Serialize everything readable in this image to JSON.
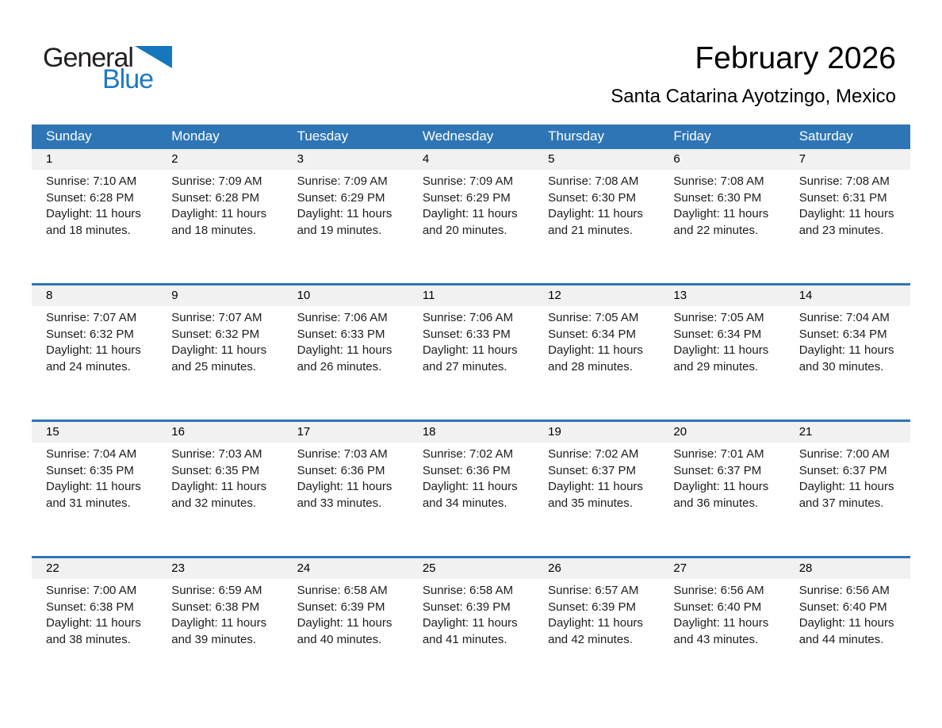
{
  "logo": {
    "part1": "General",
    "part2": "Blue"
  },
  "header": {
    "month_title": "February 2026",
    "location_subtitle": "Santa Catarina Ayotzingo, Mexico"
  },
  "colors": {
    "header_blue": "#2e75b6",
    "week_border_blue": "#2e75b6",
    "day_strip_gray": "#f1f1f1",
    "logo_black": "#231f20",
    "logo_blue": "#1b7ac4"
  },
  "calendar": {
    "weekdays": [
      "Sunday",
      "Monday",
      "Tuesday",
      "Wednesday",
      "Thursday",
      "Friday",
      "Saturday"
    ],
    "weeks": [
      {
        "days": [
          {
            "day": "1",
            "sunrise": "Sunrise: 7:10 AM",
            "sunset": "Sunset: 6:28 PM",
            "daylight_line1": "Daylight: 11 hours",
            "daylight_line2": "and 18 minutes."
          },
          {
            "day": "2",
            "sunrise": "Sunrise: 7:09 AM",
            "sunset": "Sunset: 6:28 PM",
            "daylight_line1": "Daylight: 11 hours",
            "daylight_line2": "and 18 minutes."
          },
          {
            "day": "3",
            "sunrise": "Sunrise: 7:09 AM",
            "sunset": "Sunset: 6:29 PM",
            "daylight_line1": "Daylight: 11 hours",
            "daylight_line2": "and 19 minutes."
          },
          {
            "day": "4",
            "sunrise": "Sunrise: 7:09 AM",
            "sunset": "Sunset: 6:29 PM",
            "daylight_line1": "Daylight: 11 hours",
            "daylight_line2": "and 20 minutes."
          },
          {
            "day": "5",
            "sunrise": "Sunrise: 7:08 AM",
            "sunset": "Sunset: 6:30 PM",
            "daylight_line1": "Daylight: 11 hours",
            "daylight_line2": "and 21 minutes."
          },
          {
            "day": "6",
            "sunrise": "Sunrise: 7:08 AM",
            "sunset": "Sunset: 6:30 PM",
            "daylight_line1": "Daylight: 11 hours",
            "daylight_line2": "and 22 minutes."
          },
          {
            "day": "7",
            "sunrise": "Sunrise: 7:08 AM",
            "sunset": "Sunset: 6:31 PM",
            "daylight_line1": "Daylight: 11 hours",
            "daylight_line2": "and 23 minutes."
          }
        ]
      },
      {
        "days": [
          {
            "day": "8",
            "sunrise": "Sunrise: 7:07 AM",
            "sunset": "Sunset: 6:32 PM",
            "daylight_line1": "Daylight: 11 hours",
            "daylight_line2": "and 24 minutes."
          },
          {
            "day": "9",
            "sunrise": "Sunrise: 7:07 AM",
            "sunset": "Sunset: 6:32 PM",
            "daylight_line1": "Daylight: 11 hours",
            "daylight_line2": "and 25 minutes."
          },
          {
            "day": "10",
            "sunrise": "Sunrise: 7:06 AM",
            "sunset": "Sunset: 6:33 PM",
            "daylight_line1": "Daylight: 11 hours",
            "daylight_line2": "and 26 minutes."
          },
          {
            "day": "11",
            "sunrise": "Sunrise: 7:06 AM",
            "sunset": "Sunset: 6:33 PM",
            "daylight_line1": "Daylight: 11 hours",
            "daylight_line2": "and 27 minutes."
          },
          {
            "day": "12",
            "sunrise": "Sunrise: 7:05 AM",
            "sunset": "Sunset: 6:34 PM",
            "daylight_line1": "Daylight: 11 hours",
            "daylight_line2": "and 28 minutes."
          },
          {
            "day": "13",
            "sunrise": "Sunrise: 7:05 AM",
            "sunset": "Sunset: 6:34 PM",
            "daylight_line1": "Daylight: 11 hours",
            "daylight_line2": "and 29 minutes."
          },
          {
            "day": "14",
            "sunrise": "Sunrise: 7:04 AM",
            "sunset": "Sunset: 6:34 PM",
            "daylight_line1": "Daylight: 11 hours",
            "daylight_line2": "and 30 minutes."
          }
        ]
      },
      {
        "days": [
          {
            "day": "15",
            "sunrise": "Sunrise: 7:04 AM",
            "sunset": "Sunset: 6:35 PM",
            "daylight_line1": "Daylight: 11 hours",
            "daylight_line2": "and 31 minutes."
          },
          {
            "day": "16",
            "sunrise": "Sunrise: 7:03 AM",
            "sunset": "Sunset: 6:35 PM",
            "daylight_line1": "Daylight: 11 hours",
            "daylight_line2": "and 32 minutes."
          },
          {
            "day": "17",
            "sunrise": "Sunrise: 7:03 AM",
            "sunset": "Sunset: 6:36 PM",
            "daylight_line1": "Daylight: 11 hours",
            "daylight_line2": "and 33 minutes."
          },
          {
            "day": "18",
            "sunrise": "Sunrise: 7:02 AM",
            "sunset": "Sunset: 6:36 PM",
            "daylight_line1": "Daylight: 11 hours",
            "daylight_line2": "and 34 minutes."
          },
          {
            "day": "19",
            "sunrise": "Sunrise: 7:02 AM",
            "sunset": "Sunset: 6:37 PM",
            "daylight_line1": "Daylight: 11 hours",
            "daylight_line2": "and 35 minutes."
          },
          {
            "day": "20",
            "sunrise": "Sunrise: 7:01 AM",
            "sunset": "Sunset: 6:37 PM",
            "daylight_line1": "Daylight: 11 hours",
            "daylight_line2": "and 36 minutes."
          },
          {
            "day": "21",
            "sunrise": "Sunrise: 7:00 AM",
            "sunset": "Sunset: 6:37 PM",
            "daylight_line1": "Daylight: 11 hours",
            "daylight_line2": "and 37 minutes."
          }
        ]
      },
      {
        "days": [
          {
            "day": "22",
            "sunrise": "Sunrise: 7:00 AM",
            "sunset": "Sunset: 6:38 PM",
            "daylight_line1": "Daylight: 11 hours",
            "daylight_line2": "and 38 minutes."
          },
          {
            "day": "23",
            "sunrise": "Sunrise: 6:59 AM",
            "sunset": "Sunset: 6:38 PM",
            "daylight_line1": "Daylight: 11 hours",
            "daylight_line2": "and 39 minutes."
          },
          {
            "day": "24",
            "sunrise": "Sunrise: 6:58 AM",
            "sunset": "Sunset: 6:39 PM",
            "daylight_line1": "Daylight: 11 hours",
            "daylight_line2": "and 40 minutes."
          },
          {
            "day": "25",
            "sunrise": "Sunrise: 6:58 AM",
            "sunset": "Sunset: 6:39 PM",
            "daylight_line1": "Daylight: 11 hours",
            "daylight_line2": "and 41 minutes."
          },
          {
            "day": "26",
            "sunrise": "Sunrise: 6:57 AM",
            "sunset": "Sunset: 6:39 PM",
            "daylight_line1": "Daylight: 11 hours",
            "daylight_line2": "and 42 minutes."
          },
          {
            "day": "27",
            "sunrise": "Sunrise: 6:56 AM",
            "sunset": "Sunset: 6:40 PM",
            "daylight_line1": "Daylight: 11 hours",
            "daylight_line2": "and 43 minutes."
          },
          {
            "day": "28",
            "sunrise": "Sunrise: 6:56 AM",
            "sunset": "Sunset: 6:40 PM",
            "daylight_line1": "Daylight: 11 hours",
            "daylight_line2": "and 44 minutes."
          }
        ]
      }
    ]
  }
}
